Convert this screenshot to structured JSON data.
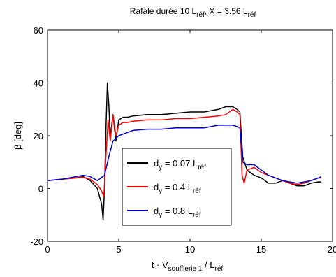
{
  "chart_data": {
    "type": "line",
    "title": {
      "pre": "Rafale durée 10 L",
      "sub1": "réf",
      "mid": ", X = 3.56 L",
      "sub2": "réf"
    },
    "xlabel": {
      "pre": "t · V",
      "sub1": "soufflerie 1",
      "mid": " / L",
      "sub2": "réf"
    },
    "ylabel": "β [deg]",
    "xlim": [
      0,
      20
    ],
    "ylim": [
      -20,
      60
    ],
    "xticks": [
      0,
      5,
      10,
      15,
      20
    ],
    "yticks": [
      -20,
      0,
      20,
      40,
      60
    ],
    "grid": false,
    "legend_position": "center",
    "series": [
      {
        "name": {
          "pre": "d",
          "sub1": "y",
          "mid": " = 0.07 L",
          "sub2": "réf"
        },
        "color": "#000000",
        "x": [
          0,
          1,
          2,
          2.5,
          3,
          3.5,
          3.8,
          3.9,
          4.0,
          4.1,
          4.2,
          4.3,
          4.4,
          4.6,
          4.8,
          5.0,
          5.3,
          5.6,
          6,
          7,
          8,
          9,
          10,
          11,
          12,
          12.5,
          13,
          13.3,
          13.5,
          13.7,
          14,
          14.5,
          15,
          15.5,
          16,
          16.5,
          17,
          17.5,
          18,
          18.5,
          19,
          19.2
        ],
        "y": [
          3,
          3.5,
          4,
          4.5,
          3,
          0,
          -6,
          -12,
          0,
          22,
          40,
          32,
          20,
          28,
          18,
          26,
          27,
          27,
          27.5,
          28,
          28,
          28.5,
          29,
          29,
          30,
          31,
          31,
          30,
          29,
          12,
          7,
          5,
          4,
          2,
          2,
          3,
          2,
          1,
          1,
          2,
          2.5,
          2.5
        ]
      },
      {
        "name": {
          "pre": "d",
          "sub1": "y",
          "mid": " = 0.4 L",
          "sub2": "réf"
        },
        "color": "#ff0000",
        "x": [
          0,
          1,
          2,
          2.5,
          3,
          3.5,
          3.8,
          3.95,
          4.1,
          4.25,
          4.4,
          4.6,
          4.8,
          5.0,
          5.3,
          5.6,
          6,
          7,
          8,
          9,
          10,
          11,
          12,
          12.5,
          13,
          13.3,
          13.5,
          13.65,
          13.8,
          14,
          14.5,
          15,
          15.5,
          16,
          16.5,
          17,
          17.5,
          18,
          18.5,
          19,
          19.2
        ],
        "y": [
          3,
          3.5,
          4,
          4.2,
          3.5,
          1.5,
          -1,
          -3,
          12,
          26,
          18,
          28,
          20,
          24,
          25,
          25,
          25.5,
          26,
          26,
          26.5,
          26.5,
          27,
          27.5,
          28,
          30,
          29,
          28,
          5,
          2,
          7,
          8,
          6,
          5,
          4,
          3,
          2,
          1.5,
          2,
          3,
          4,
          4
        ]
      },
      {
        "name": {
          "pre": "d",
          "sub1": "y",
          "mid": " = 0.8 L",
          "sub2": "réf"
        },
        "color": "#0000cc",
        "x": [
          0,
          1,
          2,
          2.5,
          3,
          3.5,
          4.0,
          4.3,
          4.6,
          5.0,
          5.5,
          6,
          7,
          8,
          9,
          10,
          11,
          12,
          12.5,
          13,
          13.3,
          13.5,
          13.7,
          14,
          14.5,
          15,
          15.5,
          16,
          16.5,
          17,
          17.5,
          18,
          18.5,
          19,
          19.2
        ],
        "y": [
          3,
          3.5,
          4.5,
          5,
          4.5,
          3,
          5,
          12,
          18,
          20,
          21,
          22,
          22.5,
          22.5,
          23,
          23,
          23,
          24,
          24,
          24,
          23.5,
          23,
          10,
          9,
          9,
          7,
          5,
          4,
          3,
          2.5,
          2,
          2.5,
          3,
          4,
          4.5
        ]
      }
    ]
  }
}
